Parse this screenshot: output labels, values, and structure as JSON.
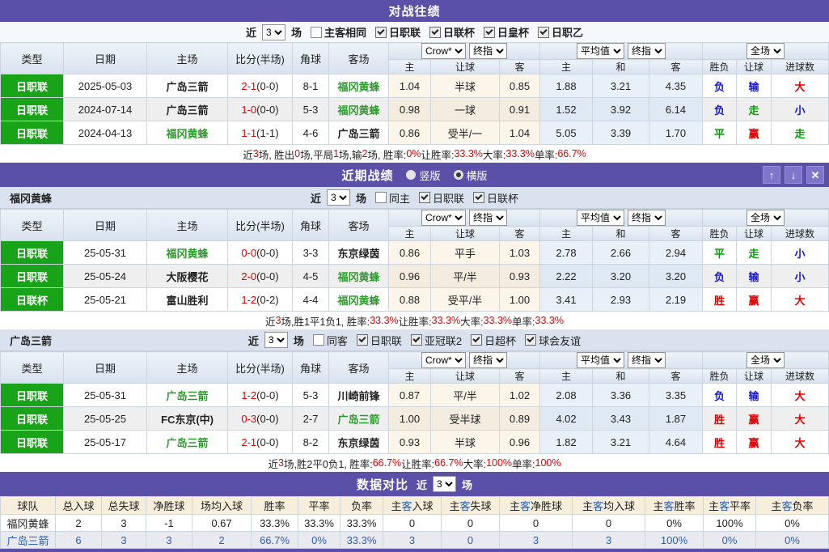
{
  "colors": {
    "accent_purple": "#5a50a8",
    "button_purple": "#7e76cb",
    "badge_green": "#18a318",
    "team_green": "#2e9b2e",
    "win_red": "#e10000",
    "lose_blue": "#1515d6",
    "draw_green": "#0a9b0a",
    "link_blue": "#2c5fb4",
    "crow_bg": "#fcf5e9",
    "avg_bg": "#e8f1f9"
  },
  "match_header": {
    "main_cols": [
      "类型",
      "日期",
      "主场",
      "比分(半场)",
      "角球",
      "客场"
    ],
    "sub_cols": [
      "主",
      "让球",
      "客",
      "主",
      "和",
      "客",
      "胜负",
      "让球",
      "进球数"
    ],
    "crow_selects": [
      "Crow*",
      "终指"
    ],
    "avg_selects": [
      "平均值",
      "终指"
    ],
    "full_select": "全场"
  },
  "h2h": {
    "title": "对战往绩",
    "filter": {
      "prefix": "近",
      "matches": "3",
      "suffix": "场",
      "checkboxes": [
        {
          "label": "主客相同",
          "checked": false
        },
        {
          "label": "日职联",
          "checked": true
        },
        {
          "label": "日联杯",
          "checked": true
        },
        {
          "label": "日皇杯",
          "checked": true
        },
        {
          "label": "日职乙",
          "checked": true
        }
      ]
    },
    "rows": [
      {
        "league": "日职联",
        "date": "2025-05-03",
        "home": "广岛三箭",
        "home_hl": false,
        "score": "2-1",
        "half": "(0-0)",
        "corners": "8-1",
        "away": "福冈黄蜂",
        "away_hl": true,
        "crow": [
          "1.04",
          "半球",
          "0.85"
        ],
        "avg": [
          "1.88",
          "3.21",
          "4.35"
        ],
        "results": [
          "负",
          "输",
          "大"
        ]
      },
      {
        "league": "日职联",
        "date": "2024-07-14",
        "home": "广岛三箭",
        "home_hl": false,
        "score": "1-0",
        "half": "(0-0)",
        "corners": "5-3",
        "away": "福冈黄蜂",
        "away_hl": true,
        "crow": [
          "0.98",
          "一球",
          "0.91"
        ],
        "avg": [
          "1.52",
          "3.92",
          "6.14"
        ],
        "results": [
          "负",
          "走",
          "小"
        ]
      },
      {
        "league": "日职联",
        "date": "2024-04-13",
        "home": "福冈黄蜂",
        "home_hl": true,
        "score": "1-1",
        "half": "(1-1)",
        "corners": "4-6",
        "away": "广岛三箭",
        "away_hl": false,
        "crow": [
          "0.86",
          "受半/一",
          "1.04"
        ],
        "avg": [
          "5.05",
          "3.39",
          "1.70"
        ],
        "results": [
          "平",
          "赢",
          "走"
        ]
      }
    ],
    "summary": [
      {
        "t": "近 "
      },
      {
        "t": "3",
        "c": "r"
      },
      {
        "t": " 场, 胜出 "
      },
      {
        "t": "0",
        "c": "r"
      },
      {
        "t": " 场,平局 "
      },
      {
        "t": "1",
        "c": "r"
      },
      {
        "t": " 场,输 "
      },
      {
        "t": "2",
        "c": "r"
      },
      {
        "t": " 场, 胜率: "
      },
      {
        "t": "0%",
        "c": "r"
      },
      {
        "t": " 让胜率: "
      },
      {
        "t": "33.3%",
        "c": "r"
      },
      {
        "t": " 大率: "
      },
      {
        "t": "33.3%",
        "c": "r"
      },
      {
        "t": " 单率: "
      },
      {
        "t": "66.7%",
        "c": "r"
      }
    ]
  },
  "recent": {
    "title": "近期战绩",
    "radios": [
      {
        "label": "竖版",
        "selected": false
      },
      {
        "label": "横版",
        "selected": true
      }
    ],
    "window_buttons": [
      {
        "icon": "up-arrow",
        "glyph": "↑"
      },
      {
        "icon": "down-arrow",
        "glyph": "↓"
      },
      {
        "icon": "close",
        "glyph": "✕"
      }
    ],
    "teams": [
      {
        "name": "福冈黄蜂",
        "filter": {
          "prefix": "近",
          "matches": "3",
          "suffix": "场",
          "checkboxes": [
            {
              "label": "同主",
              "checked": false
            },
            {
              "label": "日职联",
              "checked": true
            },
            {
              "label": "日联杯",
              "checked": true
            }
          ]
        },
        "rows": [
          {
            "league": "日职联",
            "date": "25-05-31",
            "home": "福冈黄蜂",
            "home_hl": true,
            "score": "0-0",
            "half": "(0-0)",
            "corners": "3-3",
            "away": "东京绿茵",
            "away_hl": false,
            "crow": [
              "0.86",
              "平手",
              "1.03"
            ],
            "avg": [
              "2.78",
              "2.66",
              "2.94"
            ],
            "results": [
              "平",
              "走",
              "小"
            ]
          },
          {
            "league": "日职联",
            "date": "25-05-24",
            "home": "大阪樱花",
            "home_hl": false,
            "score": "2-0",
            "half": "(0-0)",
            "corners": "4-5",
            "away": "福冈黄蜂",
            "away_hl": true,
            "crow": [
              "0.96",
              "平/半",
              "0.93"
            ],
            "avg": [
              "2.22",
              "3.20",
              "3.20"
            ],
            "results": [
              "负",
              "输",
              "小"
            ]
          },
          {
            "league": "日联杯",
            "date": "25-05-21",
            "home": "富山胜利",
            "home_hl": false,
            "score": "1-2",
            "half": "(0-2)",
            "corners": "4-4",
            "away": "福冈黄蜂",
            "away_hl": true,
            "crow": [
              "0.88",
              "受平/半",
              "1.00"
            ],
            "avg": [
              "3.41",
              "2.93",
              "2.19"
            ],
            "results": [
              "胜",
              "赢",
              "大"
            ]
          }
        ],
        "summary": [
          {
            "t": "近"
          },
          {
            "t": "3",
            "c": "r"
          },
          {
            "t": "场,胜1平1负1, 胜率:"
          },
          {
            "t": "33.3%",
            "c": "r"
          },
          {
            "t": " 让胜率:"
          },
          {
            "t": "33.3%",
            "c": "r"
          },
          {
            "t": " 大率:"
          },
          {
            "t": "33.3%",
            "c": "r"
          },
          {
            "t": " 单率:"
          },
          {
            "t": "33.3%",
            "c": "r"
          }
        ]
      },
      {
        "name": "广岛三箭",
        "filter": {
          "prefix": "近",
          "matches": "3",
          "suffix": "场",
          "checkboxes": [
            {
              "label": "同客",
              "checked": false
            },
            {
              "label": "日职联",
              "checked": true
            },
            {
              "label": "亚冠联2",
              "checked": true
            },
            {
              "label": "日超杯",
              "checked": true
            },
            {
              "label": "球会友谊",
              "checked": true
            }
          ]
        },
        "rows": [
          {
            "league": "日职联",
            "date": "25-05-31",
            "home": "广岛三箭",
            "home_hl": true,
            "score": "1-2",
            "half": "(0-0)",
            "corners": "5-3",
            "away": "川崎前锋",
            "away_hl": false,
            "crow": [
              "0.87",
              "平/半",
              "1.02"
            ],
            "avg": [
              "2.08",
              "3.36",
              "3.35"
            ],
            "results": [
              "负",
              "输",
              "大"
            ]
          },
          {
            "league": "日职联",
            "date": "25-05-25",
            "home": "FC东京(中)",
            "home_hl": false,
            "score": "0-3",
            "half": "(0-0)",
            "corners": "2-7",
            "away": "广岛三箭",
            "away_hl": true,
            "crow": [
              "1.00",
              "受半球",
              "0.89"
            ],
            "avg": [
              "4.02",
              "3.43",
              "1.87"
            ],
            "results": [
              "胜",
              "赢",
              "大"
            ]
          },
          {
            "league": "日职联",
            "date": "25-05-17",
            "home": "广岛三箭",
            "home_hl": true,
            "score": "2-1",
            "half": "(0-0)",
            "corners": "8-2",
            "away": "东京绿茵",
            "away_hl": false,
            "crow": [
              "0.93",
              "半球",
              "0.96"
            ],
            "avg": [
              "1.82",
              "3.21",
              "4.64"
            ],
            "results": [
              "胜",
              "赢",
              "大"
            ]
          }
        ],
        "summary": [
          {
            "t": "近"
          },
          {
            "t": "3",
            "c": "r"
          },
          {
            "t": "场,胜2平0负1, 胜率:"
          },
          {
            "t": "66.7%",
            "c": "r"
          },
          {
            "t": " 让胜率:"
          },
          {
            "t": "66.7%",
            "c": "r"
          },
          {
            "t": " 大率:"
          },
          {
            "t": "100%",
            "c": "r"
          },
          {
            "t": " 单率:"
          },
          {
            "t": "100%",
            "c": "r"
          }
        ]
      }
    ]
  },
  "compare": {
    "title": "数据对比",
    "filter": {
      "prefix": "近",
      "matches": "3",
      "suffix": "场"
    },
    "headers": [
      [
        {
          "t": "球队"
        }
      ],
      [
        {
          "t": "总入球"
        }
      ],
      [
        {
          "t": "总失球"
        }
      ],
      [
        {
          "t": "净胜球"
        }
      ],
      [
        {
          "t": "场均入球"
        }
      ],
      [
        {
          "t": "胜率"
        }
      ],
      [
        {
          "t": "平率"
        }
      ],
      [
        {
          "t": "负率"
        }
      ],
      [
        {
          "t": "主"
        },
        {
          "t": "客",
          "c": "b"
        },
        {
          "t": "入球"
        }
      ],
      [
        {
          "t": "主"
        },
        {
          "t": "客",
          "c": "b"
        },
        {
          "t": "失球"
        }
      ],
      [
        {
          "t": "主"
        },
        {
          "t": "客",
          "c": "b"
        },
        {
          "t": "净胜球"
        }
      ],
      [
        {
          "t": "主"
        },
        {
          "t": "客",
          "c": "b"
        },
        {
          "t": "均入球"
        }
      ],
      [
        {
          "t": "主"
        },
        {
          "t": "客",
          "c": "b"
        },
        {
          "t": "胜率"
        }
      ],
      [
        {
          "t": "主"
        },
        {
          "t": "客",
          "c": "b"
        },
        {
          "t": "平率"
        }
      ],
      [
        {
          "t": "主"
        },
        {
          "t": "客",
          "c": "b"
        },
        {
          "t": "负率"
        }
      ]
    ],
    "rows": [
      {
        "team": "福冈黄蜂",
        "blue": false,
        "values": [
          "2",
          "3",
          "-1",
          "0.67",
          "33.3%",
          "33.3%",
          "33.3%",
          "0",
          "0",
          "0",
          "0",
          "0%",
          "100%",
          "0%"
        ]
      },
      {
        "team": "广岛三箭",
        "blue": true,
        "values": [
          "6",
          "3",
          "3",
          "2",
          "66.7%",
          "0%",
          "33.3%",
          "3",
          "0",
          "3",
          "3",
          "100%",
          "0%",
          "0%"
        ]
      }
    ]
  }
}
